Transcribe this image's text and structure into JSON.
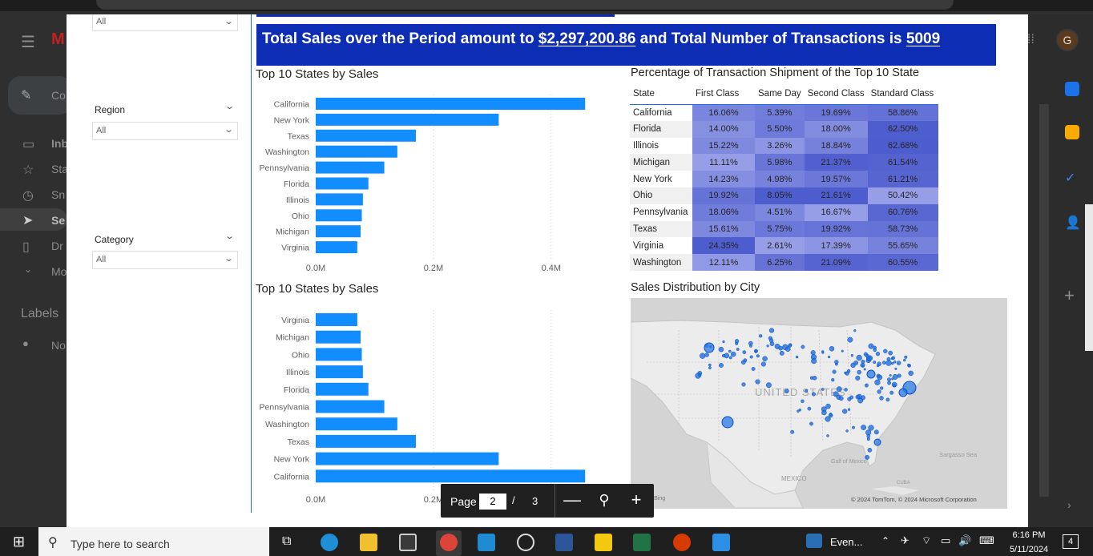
{
  "gmail": {
    "compose_label": "Co",
    "nav_items": [
      "Inb",
      "Sta",
      "Sn",
      "Se",
      "Dr",
      "Mo"
    ],
    "labels_heading": "Labels",
    "labels_item": "No",
    "avatar_letter": "G"
  },
  "slicers": {
    "top_value": "All",
    "region_label": "Region",
    "region_value": "All",
    "category_label": "Category",
    "category_value": "All"
  },
  "banner": {
    "prefix": "Total Sales over the Period amount to ",
    "total_sales": "$2,297,200.86",
    "middle": " and Total Number of Transactions is ",
    "transactions": "5009"
  },
  "visuals": {
    "bar_title_1": "Top 10 States by Sales",
    "bar_title_2": "Top 10 States by Sales",
    "matrix_title": "Percentage of Transaction Shipment of the Top 10 State",
    "map_title": "Sales Distribution by City"
  },
  "chart_data": [
    {
      "type": "bar",
      "orientation": "horizontal",
      "title": "Top 10 States by Sales",
      "categories": [
        "California",
        "New York",
        "Texas",
        "Washington",
        "Pennsylvania",
        "Florida",
        "Illinois",
        "Ohio",
        "Michigan",
        "Virginia"
      ],
      "values": [
        457688,
        310876,
        170188,
        138641,
        116512,
        89474,
        80166,
        78258,
        76270,
        70637
      ],
      "x_ticks": [
        "0.0M",
        "0.2M",
        "0.4M"
      ],
      "xlim": [
        0,
        0.52
      ],
      "color": "#118dff",
      "grid": true
    },
    {
      "type": "bar",
      "orientation": "horizontal",
      "title": "Top 10 States by Sales",
      "categories": [
        "Virginia",
        "Michigan",
        "Ohio",
        "Illinois",
        "Florida",
        "Pennsylvania",
        "Washington",
        "Texas",
        "New York",
        "California"
      ],
      "values": [
        70637,
        76270,
        78258,
        80166,
        89474,
        116512,
        138641,
        170188,
        310876,
        457688
      ],
      "x_ticks": [
        "0.0M",
        "0.2M",
        "0.4M"
      ],
      "xlim": [
        0,
        0.52
      ],
      "color": "#118dff",
      "grid": true
    },
    {
      "type": "table",
      "title": "Percentage of Transaction Shipment of the Top 10 State",
      "columns": [
        "State",
        "First Class",
        "Same Day",
        "Second Class",
        "Standard Class"
      ],
      "rows": [
        [
          "California",
          "16.06%",
          "5.39%",
          "19.69%",
          "58.86%"
        ],
        [
          "Florida",
          "14.00%",
          "5.50%",
          "18.00%",
          "62.50%"
        ],
        [
          "Illinois",
          "15.22%",
          "3.26%",
          "18.84%",
          "62.68%"
        ],
        [
          "Michigan",
          "11.11%",
          "5.98%",
          "21.37%",
          "61.54%"
        ],
        [
          "New York",
          "14.23%",
          "4.98%",
          "19.57%",
          "61.21%"
        ],
        [
          "Ohio",
          "19.92%",
          "8.05%",
          "21.61%",
          "50.42%"
        ],
        [
          "Pennsylvania",
          "18.06%",
          "4.51%",
          "16.67%",
          "60.76%"
        ],
        [
          "Texas",
          "15.61%",
          "5.75%",
          "19.92%",
          "58.73%"
        ],
        [
          "Virginia",
          "24.35%",
          "2.61%",
          "17.39%",
          "55.65%"
        ],
        [
          "Washington",
          "12.11%",
          "6.25%",
          "21.09%",
          "60.55%"
        ]
      ],
      "heat_colors": {
        "low": "#a4acec",
        "high": "#3f4fc9"
      }
    }
  ],
  "map": {
    "country_label": "UNITED STATES",
    "mexico_label": "MEXICO",
    "gulf_label": "Gulf of Mexico",
    "sargasso_label": "Sargasso Sea",
    "cuba_label": "CUBA",
    "bing_label": "osoft Bing",
    "copyright": "© 2024 TomTom, © 2024 Microsoft Corporation"
  },
  "pagenav": {
    "label": "Page",
    "current": "2",
    "slash": "/",
    "total": "3"
  },
  "taskbar": {
    "search_placeholder": "Type here to search",
    "event_label": "Even...",
    "time": "6:16 PM",
    "date": "5/11/2024",
    "notification_count": "4"
  }
}
